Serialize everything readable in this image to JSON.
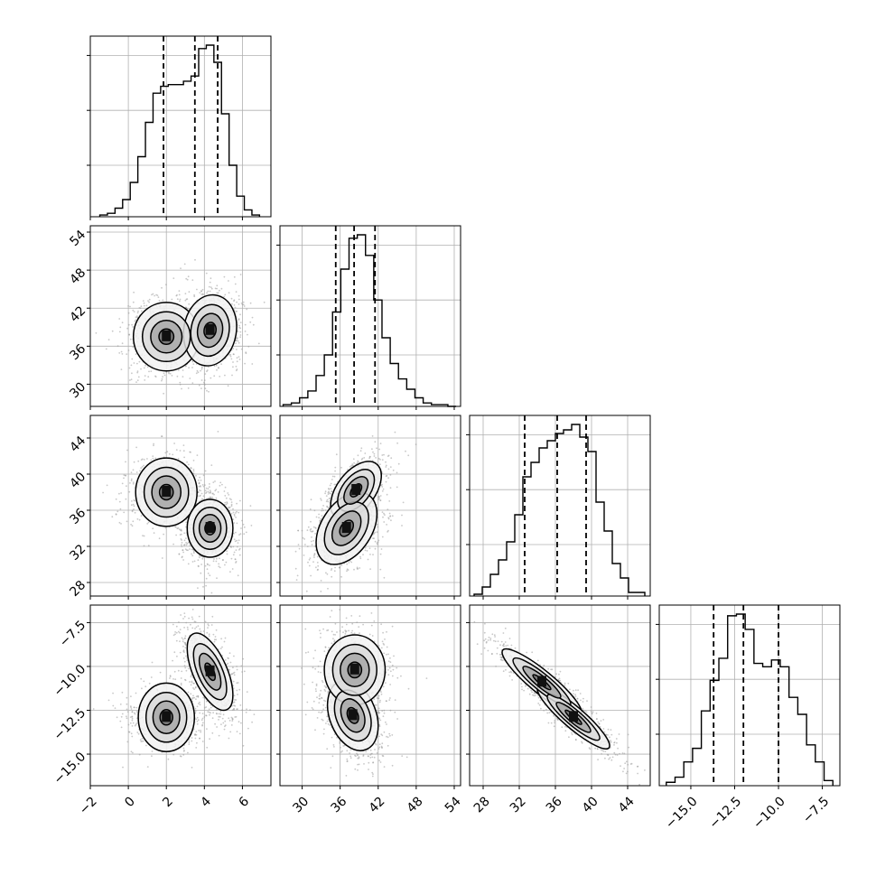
{
  "chart_data": {
    "type": "corner",
    "grid": true,
    "colors": {
      "line": "#000000",
      "grid": "#b0b0b0",
      "scatter": "#9a9a9a"
    },
    "dimensions": [
      {
        "range": [
          -2,
          7.5
        ],
        "ticks": [
          -2,
          0,
          2,
          4,
          6
        ],
        "ticklabels": [
          "−2",
          "0",
          "2",
          "4",
          "6"
        ]
      },
      {
        "range": [
          26.5,
          55
        ],
        "ticks": [
          30,
          36,
          42,
          48,
          54
        ],
        "ticklabels": [
          "30",
          "36",
          "42",
          "48",
          "54"
        ]
      },
      {
        "range": [
          26.5,
          46.5
        ],
        "ticks": [
          28,
          32,
          36,
          40,
          44
        ],
        "ticklabels": [
          "28",
          "32",
          "36",
          "40",
          "44"
        ]
      },
      {
        "range": [
          -16.8,
          -6.5
        ],
        "ticks": [
          -15.0,
          -12.5,
          -10.0,
          -7.5
        ],
        "ticklabels": [
          "−15.0",
          "−12.5",
          "−10.0",
          "−7.5"
        ]
      }
    ],
    "histograms": [
      {
        "bins": [
          -1.5,
          -1.1,
          -0.7,
          -0.3,
          0.1,
          0.5,
          0.9,
          1.3,
          1.7,
          2.1,
          2.5,
          2.9,
          3.3,
          3.7,
          4.1,
          4.5,
          4.9,
          5.3,
          5.7,
          6.1,
          6.5,
          6.9
        ],
        "counts": [
          1,
          2,
          5,
          10,
          20,
          35,
          55,
          72,
          76,
          77,
          77,
          79,
          82,
          98,
          100,
          90,
          60,
          30,
          12,
          4,
          1
        ],
        "quantiles": [
          1.85,
          3.5,
          4.7
        ]
      },
      {
        "bins": [
          27,
          28.3,
          29.6,
          30.9,
          32.2,
          33.5,
          34.8,
          36.1,
          37.4,
          38.7,
          40,
          41.3,
          42.6,
          43.9,
          45.2,
          46.5,
          47.8,
          49.1,
          50.4,
          51.7,
          53,
          54.3
        ],
        "counts": [
          1,
          2,
          5,
          9,
          18,
          30,
          55,
          80,
          98,
          100,
          88,
          62,
          40,
          25,
          16,
          10,
          5,
          2,
          1,
          1,
          0
        ],
        "quantiles": [
          35.3,
          38.2,
          41.5
        ]
      },
      {
        "bins": [
          27,
          27.9,
          28.8,
          29.7,
          30.6,
          31.5,
          32.4,
          33.3,
          34.2,
          35.1,
          36,
          36.9,
          37.8,
          38.7,
          39.6,
          40.5,
          41.4,
          42.3,
          43.2,
          44.1,
          45,
          45.9
        ],
        "counts": [
          1,
          5,
          12,
          20,
          30,
          45,
          66,
          74,
          82,
          86,
          90,
          92,
          95,
          88,
          80,
          52,
          36,
          18,
          10,
          2,
          2
        ],
        "quantiles": [
          32.6,
          36.2,
          39.4
        ]
      },
      {
        "bins": [
          -16.4,
          -15.9,
          -15.4,
          -14.9,
          -14.4,
          -13.9,
          -13.4,
          -12.9,
          -12.4,
          -11.9,
          -11.4,
          -10.9,
          -10.4,
          -9.9,
          -9.4,
          -8.9,
          -8.4,
          -7.9,
          -7.4,
          -6.9
        ],
        "counts": [
          2,
          5,
          14,
          22,
          44,
          62,
          75,
          100,
          101,
          92,
          72,
          70,
          74,
          70,
          52,
          42,
          24,
          14,
          3
        ],
        "quantiles": [
          -13.7,
          -12.0,
          -10.0
        ]
      }
    ],
    "joint": [
      {
        "x": 0,
        "y": 1,
        "components": [
          {
            "mx": 2.0,
            "my": 37.5,
            "sx": 0.9,
            "sy": 2.6,
            "rho": 0.0,
            "w": 0.45
          },
          {
            "mx": 4.3,
            "my": 38.5,
            "sx": 0.7,
            "sy": 2.8,
            "rho": 0.1,
            "w": 0.55
          }
        ]
      },
      {
        "x": 0,
        "y": 2,
        "components": [
          {
            "mx": 2.0,
            "my": 38.0,
            "sx": 0.9,
            "sy": 1.7,
            "rho": 0.0,
            "w": 0.45
          },
          {
            "mx": 4.3,
            "my": 34.0,
            "sx": 0.6,
            "sy": 1.6,
            "rho": 0.0,
            "w": 0.55
          }
        ]
      },
      {
        "x": 0,
        "y": 3,
        "components": [
          {
            "mx": 2.0,
            "my": -12.9,
            "sx": 0.9,
            "sy": 0.8,
            "rho": 0.0,
            "w": 0.45
          },
          {
            "mx": 4.3,
            "my": -10.3,
            "sx": 0.6,
            "sy": 1.1,
            "rho": -0.6,
            "w": 0.55
          }
        ]
      },
      {
        "x": 1,
        "y": 2,
        "components": [
          {
            "mx": 38.5,
            "my": 38.2,
            "sx": 2.0,
            "sy": 1.6,
            "rho": 0.5,
            "w": 0.45
          },
          {
            "mx": 37.0,
            "my": 34.0,
            "sx": 2.4,
            "sy": 2.0,
            "rho": 0.4,
            "w": 0.55
          }
        ]
      },
      {
        "x": 1,
        "y": 3,
        "components": [
          {
            "mx": 38.0,
            "my": -12.8,
            "sx": 2.0,
            "sy": 1.0,
            "rho": -0.3,
            "w": 0.55
          },
          {
            "mx": 38.3,
            "my": -10.2,
            "sx": 2.4,
            "sy": 1.0,
            "rho": 0.0,
            "w": 0.45
          }
        ]
      },
      {
        "x": 2,
        "y": 3,
        "components": [
          {
            "mx": 34.5,
            "my": -10.9,
            "sx": 2.2,
            "sy": 0.95,
            "rho": -0.9,
            "w": 0.45
          },
          {
            "mx": 38.0,
            "my": -12.9,
            "sx": 2.0,
            "sy": 0.9,
            "rho": -0.9,
            "w": 0.55
          }
        ]
      }
    ]
  }
}
